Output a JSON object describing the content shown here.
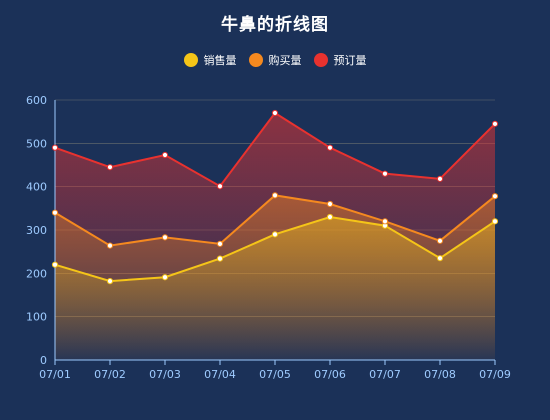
{
  "chart_data": {
    "type": "area",
    "title": "牛鼻的折线图",
    "xlabel": "",
    "ylabel": "",
    "categories": [
      "07/01",
      "07/02",
      "07/03",
      "07/04",
      "07/05",
      "07/06",
      "07/07",
      "07/08",
      "07/09"
    ],
    "ylim": [
      0,
      600
    ],
    "yticks": [
      0,
      100,
      200,
      300,
      400,
      500,
      600
    ],
    "grid": true,
    "legend_position": "top-center",
    "series": [
      {
        "name": "销售量",
        "color": "#f5c518",
        "values": [
          220,
          182,
          191,
          234,
          290,
          330,
          310,
          235,
          320
        ]
      },
      {
        "name": "购买量",
        "color": "#f5891f",
        "values": [
          340,
          264,
          283,
          268,
          380,
          360,
          320,
          275,
          378
        ]
      },
      {
        "name": "预订量",
        "color": "#e8322f",
        "values": [
          490,
          445,
          473,
          401,
          570,
          490,
          430,
          418,
          545
        ]
      }
    ]
  }
}
